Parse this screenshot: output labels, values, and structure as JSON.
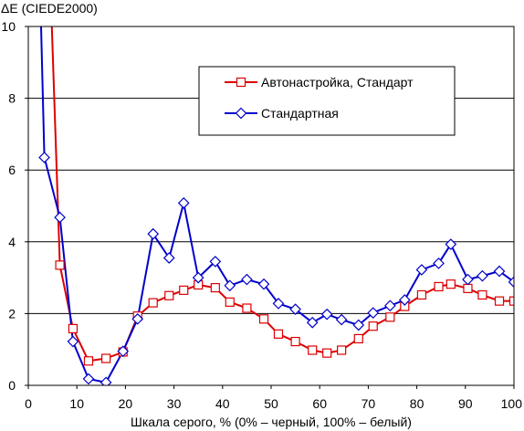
{
  "chart_data": {
    "type": "line",
    "title": "",
    "ylabel": "ΔE (CIEDE2000)",
    "xlabel": "Шкала серого, % (0% – черный, 100% – белый)",
    "xlim": [
      0,
      100
    ],
    "ylim": [
      0,
      10
    ],
    "xticks": [
      0,
      10,
      20,
      30,
      40,
      50,
      60,
      70,
      80,
      90,
      100
    ],
    "yticks": [
      0,
      2,
      4,
      6,
      8,
      10
    ],
    "grid": "horizontal",
    "legend_position": "top-right",
    "series": [
      {
        "name": "Автонастройка, Стандарт",
        "color": "#dd0000",
        "marker": "square",
        "x": [
          4.8,
          6.5,
          9.2,
          12.4,
          16,
          19.5,
          22.5,
          25.7,
          29,
          32,
          35,
          38.5,
          41.5,
          45,
          48.5,
          51.5,
          55,
          58.5,
          61.5,
          64.5,
          68,
          71,
          74.5,
          77.5,
          81,
          84.5,
          87,
          90.5,
          93.5,
          97,
          100
        ],
        "y": [
          10.2,
          3.35,
          1.58,
          0.68,
          0.75,
          0.93,
          1.93,
          2.3,
          2.5,
          2.65,
          2.8,
          2.72,
          2.32,
          2.15,
          1.85,
          1.43,
          1.22,
          0.98,
          0.9,
          0.98,
          1.3,
          1.65,
          1.9,
          2.2,
          2.52,
          2.75,
          2.82,
          2.7,
          2.52,
          2.35,
          2.35
        ]
      },
      {
        "name": "Стандартная",
        "color": "#0000cc",
        "marker": "diamond",
        "x": [
          2.6,
          3.3,
          6.5,
          9.2,
          12.4,
          16,
          19.5,
          22.5,
          25.7,
          29,
          32,
          35,
          38.5,
          41.5,
          45,
          48.5,
          51.5,
          55,
          58.5,
          61.5,
          64.5,
          68,
          71,
          74.5,
          77.5,
          81,
          84.5,
          87,
          90.5,
          93.5,
          97,
          100
        ],
        "y": [
          10.2,
          6.35,
          4.68,
          1.22,
          0.18,
          0.08,
          0.95,
          1.85,
          4.22,
          3.55,
          5.08,
          3.0,
          3.45,
          2.78,
          2.95,
          2.82,
          2.28,
          2.12,
          1.75,
          1.98,
          1.83,
          1.68,
          2.02,
          2.22,
          2.38,
          3.22,
          3.4,
          3.93,
          2.95,
          3.05,
          3.18,
          2.88
        ]
      }
    ]
  }
}
